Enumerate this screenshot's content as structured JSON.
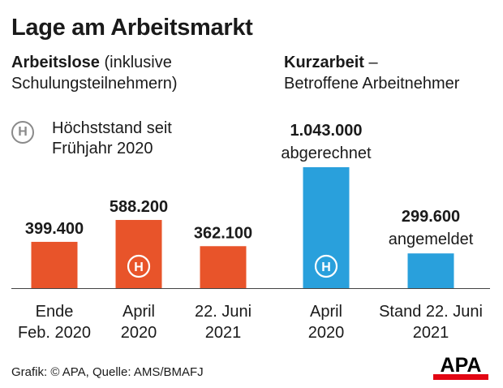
{
  "title": "Lage am Arbeitsmarkt",
  "left_section": {
    "bold": "Arbeitslose",
    "rest": " (inklusive",
    "line2": "Schulungsteilnehmern)"
  },
  "right_section": {
    "bold": "Kurzarbeit",
    "rest": " –",
    "line2": "Betroffene Arbeitnehmer"
  },
  "legend": {
    "icon": "H",
    "line1": "Höchststand seit",
    "line2": "Frühjahr 2020"
  },
  "chart_data": {
    "type": "bar",
    "categories": [
      [
        "Ende",
        "Feb. 2020"
      ],
      [
        "April",
        "2020"
      ],
      [
        "22. Juni",
        "2021"
      ],
      [
        "April",
        "2020"
      ],
      [
        "Stand 22. Juni",
        "2021"
      ]
    ],
    "values": [
      399400,
      588200,
      362100,
      1043000,
      299600
    ],
    "value_labels": [
      "399.400",
      "588.200",
      "362.100",
      "1.043.000",
      "299.600"
    ],
    "sublabels": [
      "",
      "",
      "",
      "abgerechnet",
      "angemeldet"
    ],
    "colors": [
      "#e8542a",
      "#e8542a",
      "#e8542a",
      "#29a0dc",
      "#29a0dc"
    ],
    "highlight": [
      false,
      true,
      false,
      true,
      false
    ],
    "groups": [
      "Arbeitslose",
      "Arbeitslose",
      "Arbeitslose",
      "Kurzarbeit",
      "Kurzarbeit"
    ],
    "ylim": [
      0,
      1043000
    ],
    "grid": false
  },
  "footer": "Grafik: © APA, Quelle: AMS/BMAFJ",
  "logo": {
    "text": "APA",
    "colors": {
      "text": "#000000",
      "bar": "#e30613"
    }
  }
}
